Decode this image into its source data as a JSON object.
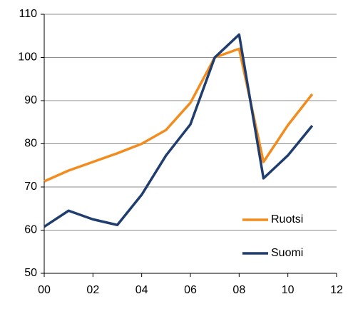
{
  "chart_data": {
    "type": "line",
    "x": [
      0,
      1,
      2,
      3,
      4,
      5,
      6,
      7,
      8,
      9,
      10,
      11
    ],
    "series": [
      {
        "name": "Ruotsi",
        "color": "#f28c1e",
        "values": [
          71.3,
          73.8,
          75.8,
          77.8,
          80,
          83.2,
          89.5,
          100,
          102,
          75.8,
          84.3,
          91.5
        ]
      },
      {
        "name": "Suomi",
        "color": "#1f3d6e",
        "values": [
          60.8,
          64.5,
          62.5,
          61.2,
          68.2,
          77.3,
          84.5,
          100,
          105.3,
          72,
          77.3,
          84.2
        ]
      }
    ],
    "xlim": [
      0,
      12
    ],
    "xticks": [
      {
        "value": 0,
        "label": "00"
      },
      {
        "value": 2,
        "label": "02"
      },
      {
        "value": 4,
        "label": "04"
      },
      {
        "value": 6,
        "label": "06"
      },
      {
        "value": 8,
        "label": "08"
      },
      10,
      12
    ],
    "ylim": [
      50,
      110
    ],
    "yticks": [
      50,
      60,
      70,
      80,
      90,
      100,
      110
    ],
    "grid": true,
    "legend": "lower right"
  }
}
